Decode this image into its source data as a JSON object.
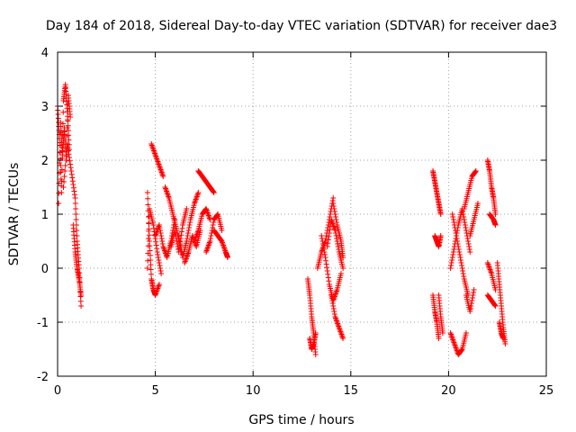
{
  "chart_data": {
    "type": "scatter",
    "title": "Day 184 of 2018, Sidereal Day-to-day VTEC variation (SDTVAR) for receiver dae3",
    "xlabel": "GPS time / hours",
    "ylabel": "SDTVAR / TECUs",
    "xlim": [
      0,
      25
    ],
    "ylim": [
      -2,
      4
    ],
    "xticks": [
      "0",
      "5",
      "10",
      "15",
      "20",
      "25"
    ],
    "yticks": [
      "-2",
      "-1",
      "0",
      "1",
      "2",
      "3",
      "4"
    ],
    "grid": true,
    "marker": "+",
    "color": "#ff0000",
    "series": [
      {
        "name": "SDTVAR",
        "tracks": [
          {
            "t": [
              0.0,
              0.1,
              0.2,
              0.3,
              0.4,
              0.5,
              0.6
            ],
            "v": [
              3.0,
              2.4,
              1.4,
              3.1,
              3.4,
              2.9,
              2.2
            ]
          },
          {
            "t": [
              0.05,
              0.15,
              0.25,
              0.35,
              0.45,
              0.55,
              0.65
            ],
            "v": [
              1.2,
              2.7,
              2.1,
              2.6,
              2.0,
              3.2,
              2.8
            ]
          },
          {
            "t": [
              0.3,
              0.5,
              0.7,
              0.9,
              1.0,
              1.1,
              1.2
            ],
            "v": [
              1.5,
              2.3,
              1.8,
              1.3,
              0.5,
              0.0,
              -0.7
            ]
          },
          {
            "t": [
              0.8,
              0.9,
              1.0,
              1.1,
              1.2
            ],
            "v": [
              0.8,
              0.3,
              0.0,
              -0.2,
              -0.5
            ]
          },
          {
            "t": [
              4.6,
              4.7,
              4.8,
              4.9,
              5.0,
              5.2
            ],
            "v": [
              1.4,
              0.5,
              -0.2,
              -0.4,
              -0.5,
              -0.3
            ]
          },
          {
            "t": [
              4.6,
              4.7,
              4.9,
              5.1,
              5.3
            ],
            "v": [
              0.0,
              1.1,
              0.8,
              0.3,
              -0.1
            ]
          },
          {
            "t": [
              4.8,
              5.0,
              5.2,
              5.4
            ],
            "v": [
              2.3,
              2.1,
              1.9,
              1.7
            ]
          },
          {
            "t": [
              5.0,
              5.2,
              5.4,
              5.6,
              5.8,
              6.0
            ],
            "v": [
              0.6,
              0.8,
              0.4,
              0.2,
              0.5,
              0.9
            ]
          },
          {
            "t": [
              5.5,
              5.7,
              5.9,
              6.1,
              6.3
            ],
            "v": [
              1.5,
              1.3,
              1.0,
              0.7,
              0.3
            ]
          },
          {
            "t": [
              5.8,
              6.0,
              6.2,
              6.4,
              6.6
            ],
            "v": [
              0.4,
              0.7,
              0.3,
              0.8,
              1.1
            ]
          },
          {
            "t": [
              6.2,
              6.4,
              6.6,
              6.8,
              7.0,
              7.2
            ],
            "v": [
              0.6,
              0.2,
              0.5,
              0.9,
              1.2,
              1.4
            ]
          },
          {
            "t": [
              6.5,
              6.7,
              6.9,
              7.1,
              7.3
            ],
            "v": [
              0.1,
              0.3,
              0.6,
              0.4,
              0.7
            ]
          },
          {
            "t": [
              7.2,
              7.4,
              7.6,
              7.8,
              8.0
            ],
            "v": [
              1.8,
              1.7,
              1.6,
              1.5,
              1.4
            ]
          },
          {
            "t": [
              7.0,
              7.2,
              7.4,
              7.6,
              7.8
            ],
            "v": [
              0.5,
              0.7,
              1.0,
              1.1,
              0.9
            ]
          },
          {
            "t": [
              7.6,
              7.8,
              8.0,
              8.2,
              8.4
            ],
            "v": [
              0.3,
              0.5,
              0.9,
              1.0,
              0.7
            ]
          },
          {
            "t": [
              8.0,
              8.2,
              8.4,
              8.6,
              8.7
            ],
            "v": [
              0.7,
              0.6,
              0.5,
              0.3,
              0.2
            ]
          },
          {
            "t": [
              12.8,
              12.9,
              13.0,
              13.1,
              13.2
            ],
            "v": [
              -0.2,
              -0.5,
              -0.9,
              -1.2,
              -1.6
            ]
          },
          {
            "t": [
              12.9,
              13.0,
              13.1,
              13.2
            ],
            "v": [
              -1.3,
              -1.5,
              -1.4,
              -1.2
            ]
          },
          {
            "t": [
              13.3,
              13.5,
              13.7,
              13.9,
              14.1
            ],
            "v": [
              0.0,
              0.3,
              0.5,
              0.9,
              1.3
            ]
          },
          {
            "t": [
              13.5,
              13.7,
              13.9,
              14.1,
              14.3,
              14.5
            ],
            "v": [
              0.6,
              0.2,
              -0.3,
              -0.6,
              -0.4,
              -0.1
            ]
          },
          {
            "t": [
              13.8,
              14.0,
              14.2,
              14.4,
              14.6
            ],
            "v": [
              0.4,
              0.9,
              0.7,
              0.3,
              0.0
            ]
          },
          {
            "t": [
              14.0,
              14.2,
              14.4,
              14.6
            ],
            "v": [
              -0.5,
              -0.9,
              -1.1,
              -1.3
            ]
          },
          {
            "t": [
              14.1,
              14.3,
              14.5,
              14.6
            ],
            "v": [
              1.2,
              0.8,
              0.5,
              0.2
            ]
          },
          {
            "t": [
              19.2,
              19.3,
              19.4,
              19.5,
              19.6
            ],
            "v": [
              1.8,
              1.6,
              1.4,
              1.2,
              1.0
            ]
          },
          {
            "t": [
              19.2,
              19.3,
              19.4,
              19.5
            ],
            "v": [
              -0.5,
              -0.8,
              -1.0,
              -1.3
            ]
          },
          {
            "t": [
              19.3,
              19.4,
              19.5,
              19.6
            ],
            "v": [
              0.6,
              0.5,
              0.4,
              0.6
            ]
          },
          {
            "t": [
              19.5,
              19.6,
              19.7
            ],
            "v": [
              -0.5,
              -0.9,
              -1.2
            ]
          },
          {
            "t": [
              20.1,
              20.3,
              20.5,
              20.7,
              20.9
            ],
            "v": [
              -1.2,
              -1.4,
              -1.6,
              -1.5,
              -1.2
            ]
          },
          {
            "t": [
              20.1,
              20.3,
              20.5,
              20.7,
              20.9,
              21.1
            ],
            "v": [
              0.0,
              0.4,
              0.8,
              1.1,
              0.7,
              0.3
            ]
          },
          {
            "t": [
              20.2,
              20.4,
              20.6,
              20.8,
              21.0
            ],
            "v": [
              1.0,
              0.6,
              0.2,
              -0.2,
              -0.5
            ]
          },
          {
            "t": [
              20.8,
              21.0,
              21.2,
              21.4
            ],
            "v": [
              1.1,
              1.4,
              1.7,
              1.8
            ]
          },
          {
            "t": [
              20.9,
              21.1,
              21.3
            ],
            "v": [
              -0.5,
              -0.8,
              -0.4
            ]
          },
          {
            "t": [
              21.1,
              21.3,
              21.5
            ],
            "v": [
              0.6,
              0.9,
              1.2
            ]
          },
          {
            "t": [
              22.0,
              22.1,
              22.2,
              22.3,
              22.4
            ],
            "v": [
              2.0,
              1.8,
              1.5,
              1.3,
              1.0
            ]
          },
          {
            "t": [
              22.0,
              22.2,
              22.4
            ],
            "v": [
              0.1,
              -0.1,
              -0.4
            ]
          },
          {
            "t": [
              22.0,
              22.2,
              22.4
            ],
            "v": [
              -0.5,
              -0.6,
              -0.7
            ]
          },
          {
            "t": [
              22.1,
              22.3,
              22.4
            ],
            "v": [
              1.0,
              0.9,
              0.8
            ]
          },
          {
            "t": [
              22.5,
              22.6,
              22.7,
              22.8,
              22.9
            ],
            "v": [
              0.1,
              -0.3,
              -0.7,
              -1.1,
              -1.4
            ]
          },
          {
            "t": [
              22.6,
              22.7,
              22.8
            ],
            "v": [
              -1.0,
              -1.2,
              -1.3
            ]
          }
        ]
      }
    ]
  }
}
